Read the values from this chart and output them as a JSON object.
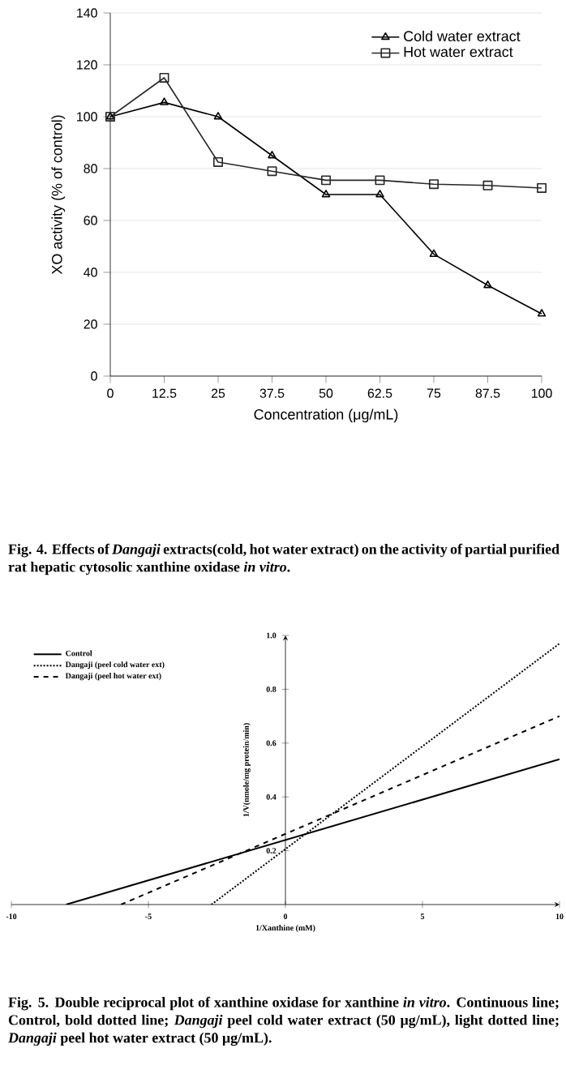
{
  "chart_data": [
    {
      "type": "line",
      "xlabel": "Concentration (μg/mL)",
      "ylabel": "XO activity (% of control)",
      "x": [
        0,
        12.5,
        25,
        37.5,
        50,
        62.5,
        75,
        87.5,
        100
      ],
      "xlim": [
        0,
        100
      ],
      "xticks": [
        0,
        12.5,
        25,
        37.5,
        50,
        62.5,
        75,
        87.5,
        100
      ],
      "ylim": [
        0,
        140
      ],
      "yticks": [
        0,
        20,
        40,
        60,
        80,
        100,
        120,
        140
      ],
      "grid": "y",
      "legend": "top right",
      "line_style": "solid",
      "series": [
        {
          "name": "Cold water extract",
          "color": "#000000",
          "marker": "triangle",
          "values": [
            100,
            105.5,
            100,
            85,
            70,
            70,
            47,
            35,
            24
          ]
        },
        {
          "name": "Hot water extract",
          "color": "#262626",
          "marker": "square",
          "values": [
            100,
            115,
            82.5,
            79,
            75.5,
            75.5,
            74,
            73.5,
            72.5
          ]
        }
      ],
      "annotations": [
        "Fig. 4. Effects of *Dangaji* extracts(cold, hot water extract) on the activity of partial purified rat hepatic cytosolic xanthine oxidase *in vitro*."
      ]
    },
    {
      "type": "line",
      "xlabel": "1/Xanthine (mM)",
      "ylabel": "1/V(nmole/mg protein/min)",
      "xlim": [
        -10,
        10
      ],
      "xticks": [
        -10,
        -5,
        0,
        5,
        10
      ],
      "ylim": [
        0,
        1.0
      ],
      "yticks": [
        0.2,
        0.4,
        0.6,
        0.8,
        {
          "value": 1.0,
          "label": "1.0"
        }
      ],
      "legend": "top left",
      "marker": "none",
      "series": [
        {
          "name": "Control",
          "color": "#000000",
          "line_style": "solid",
          "x": [
            -8,
            10
          ],
          "values": [
            0,
            0.54
          ]
        },
        {
          "name": "Dangaji (peel cold water ext)",
          "color": "#000000",
          "line_style": "dotted",
          "x": [
            -2.7,
            10
          ],
          "values": [
            0,
            0.97
          ]
        },
        {
          "name": "Dangaji (peel hot water ext)",
          "color": "#000000",
          "line_style": "dashed",
          "x": [
            -6,
            10
          ],
          "values": [
            0,
            0.7
          ]
        }
      ],
      "annotations": [
        "Fig. 5. Double reciprocal plot of xanthine oxidase for xanthine *in vitro*. Continuous line; Control, bold dotted line; *Dangaji* peel cold water extract (50 μg/mL), light dotted line; *Dangaji* peel hot water extract (50 μg/mL)."
      ]
    }
  ]
}
